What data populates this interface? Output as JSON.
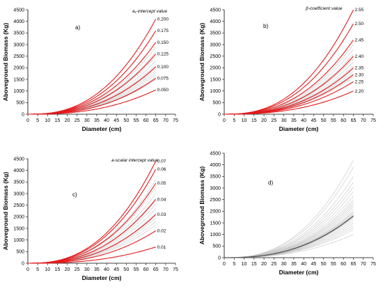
{
  "colors": {
    "highlight": "#e41a1c",
    "grey": "#c4c4c4",
    "dark": "#555555",
    "axis": "#000000"
  },
  "chart_data": [
    {
      "type": "line",
      "panel_label": "a)",
      "legend_title": "a₁-intercept value",
      "xlabel": "Diameter (cm)",
      "ylabel": "Aboveground Biomass (Kg)",
      "xlim": [
        0,
        75
      ],
      "ylim": [
        0,
        4500
      ],
      "xticks": [
        "0",
        "5",
        "10",
        "15",
        "20",
        "25",
        "30",
        "35",
        "40",
        "45",
        "50",
        "55",
        "60",
        "65",
        "70",
        "75"
      ],
      "yticks": [
        "0",
        "500",
        "1000",
        "1500",
        "2000",
        "2500",
        "3000",
        "3500",
        "4000",
        "4500"
      ],
      "x_end": 65,
      "series": [
        {
          "name": "0.200",
          "end_value": 4100,
          "color": "highlight"
        },
        {
          "name": "0.175",
          "end_value": 3600,
          "color": "highlight"
        },
        {
          "name": "0.150",
          "end_value": 3100,
          "color": "highlight"
        },
        {
          "name": "0.125",
          "end_value": 2600,
          "color": "highlight"
        },
        {
          "name": "0.100",
          "end_value": 2050,
          "color": "highlight"
        },
        {
          "name": "0.075",
          "end_value": 1550,
          "color": "highlight"
        },
        {
          "name": "0.050",
          "end_value": 1050,
          "color": "highlight"
        }
      ],
      "background_end_values": [
        2900,
        2700,
        2500,
        2300,
        2150,
        2000,
        1900,
        1800,
        1700,
        1600,
        1500
      ]
    },
    {
      "type": "line",
      "panel_label": "b)",
      "legend_title": "β-coefficient value",
      "xlabel": "Diameter (cm)",
      "ylabel": "Aboveground Biomass (Kg)",
      "xlim": [
        0,
        75
      ],
      "ylim": [
        0,
        4500
      ],
      "xticks": [
        "0",
        "5",
        "10",
        "15",
        "20",
        "25",
        "30",
        "35",
        "40",
        "45",
        "50",
        "55",
        "60",
        "65",
        "70",
        "75"
      ],
      "yticks": [
        "0",
        "500",
        "1000",
        "1500",
        "2000",
        "2500",
        "3000",
        "3500",
        "4000",
        "4500"
      ],
      "x_end": 65,
      "series": [
        {
          "name": "2.55",
          "end_value": 4500,
          "color": "highlight"
        },
        {
          "name": "2.50",
          "end_value": 3900,
          "color": "highlight"
        },
        {
          "name": "2.45",
          "end_value": 3200,
          "color": "highlight"
        },
        {
          "name": "2.40",
          "end_value": 2500,
          "color": "highlight"
        },
        {
          "name": "2.35",
          "end_value": 2000,
          "color": "highlight"
        },
        {
          "name": "2.30",
          "end_value": 1700,
          "color": "highlight"
        },
        {
          "name": "2.25",
          "end_value": 1400,
          "color": "highlight"
        },
        {
          "name": "2.20",
          "end_value": 1000,
          "color": "highlight"
        }
      ],
      "background_end_values": [
        3000,
        2800,
        2600,
        2400,
        2250,
        2100,
        1950,
        1850,
        1750,
        1600
      ]
    },
    {
      "type": "line",
      "panel_label": "c)",
      "legend_title": "a-scalar intercept value",
      "xlabel": "Diameter (cm)",
      "ylabel": "Aboveground Biomass (Kg)",
      "xlim": [
        0,
        75
      ],
      "ylim": [
        0,
        4500
      ],
      "xticks": [
        "0",
        "5",
        "10",
        "15",
        "20",
        "25",
        "30",
        "35",
        "40",
        "45",
        "50",
        "55",
        "60",
        "65",
        "70",
        "75"
      ],
      "yticks": [
        "0",
        "500",
        "1000",
        "1500",
        "2000",
        "2500",
        "3000",
        "3500",
        "4000",
        "4500"
      ],
      "x_end": 65,
      "series": [
        {
          "name": "0.07",
          "end_value": 4400,
          "color": "highlight"
        },
        {
          "name": "0.06",
          "end_value": 4050,
          "color": "highlight"
        },
        {
          "name": "0.05",
          "end_value": 3450,
          "color": "highlight"
        },
        {
          "name": "0.04",
          "end_value": 2750,
          "color": "highlight"
        },
        {
          "name": "0.03",
          "end_value": 2100,
          "color": "highlight"
        },
        {
          "name": "0.02",
          "end_value": 1400,
          "color": "highlight"
        },
        {
          "name": "0.01",
          "end_value": 700,
          "color": "highlight"
        }
      ],
      "background_end_values": [
        3600,
        3300,
        3000,
        2800,
        2550,
        2350,
        2150,
        1950,
        1800,
        1650
      ]
    },
    {
      "type": "line",
      "panel_label": "d)",
      "legend_title": "",
      "xlabel": "Diameter (cm)",
      "ylabel": "Aboveground Biomass (Kg)",
      "xlim": [
        0,
        75
      ],
      "ylim": [
        0,
        4500
      ],
      "xticks": [
        "0",
        "5",
        "10",
        "15",
        "20",
        "25",
        "30",
        "35",
        "40",
        "45",
        "50",
        "55",
        "60",
        "65",
        "70",
        "75"
      ],
      "yticks": [
        "0",
        "500",
        "1000",
        "1500",
        "2000",
        "2500",
        "3000",
        "3500",
        "4000",
        "4500"
      ],
      "x_end": 65,
      "series": [
        {
          "name": "",
          "end_value": 1800,
          "color": "dark"
        }
      ],
      "background_end_values": [
        4200,
        3900,
        3500,
        3250,
        3050,
        2850,
        2650,
        2500,
        2400,
        2300,
        2200,
        2100,
        2000,
        1950,
        1900,
        1850,
        1750,
        1700,
        1600,
        1500,
        1400,
        1300,
        1200,
        1000
      ]
    }
  ]
}
